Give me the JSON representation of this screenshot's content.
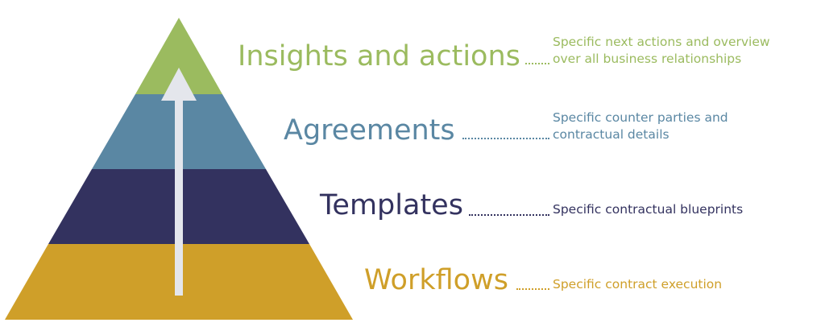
{
  "levels": [
    {
      "title": "Insights and actions",
      "description_lines": [
        "Specific next actions and overview",
        "over all business relationships"
      ],
      "color": "#9bbb5f"
    },
    {
      "title": "Agreements",
      "description_lines": [
        "Specific counter parties and",
        "contractual details"
      ],
      "color": "#5a87a3"
    },
    {
      "title": "Templates",
      "description_lines": [
        "Specific contractual blueprints"
      ],
      "color": "#33325f"
    },
    {
      "title": "Workflows",
      "description_lines": [
        "Specific contract execution"
      ],
      "color": "#cf9f29"
    }
  ],
  "arrow": {
    "color": "#e4e6ec",
    "direction": "up"
  }
}
